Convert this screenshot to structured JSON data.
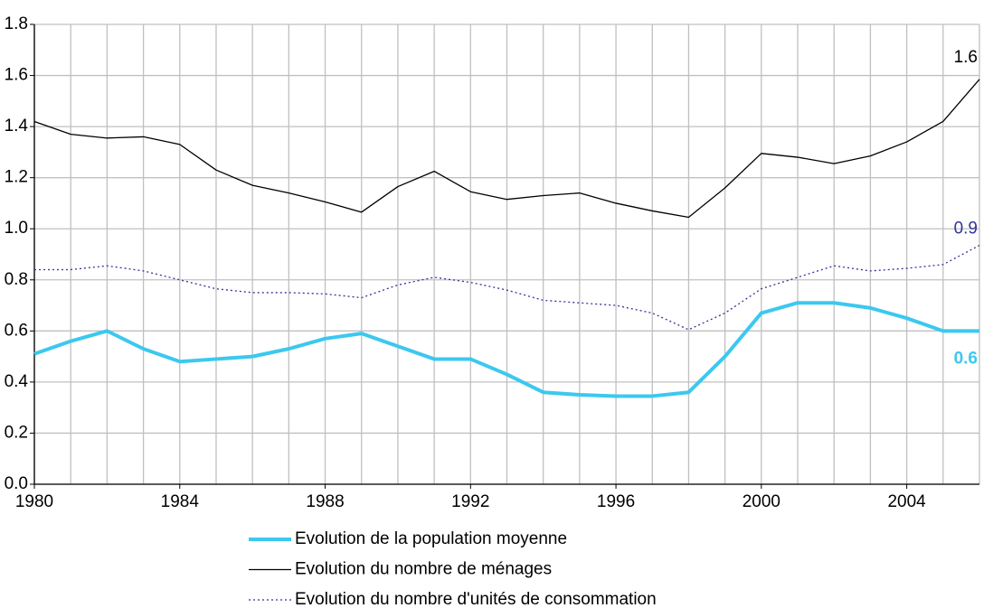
{
  "chart_data": {
    "type": "line",
    "x": [
      1980,
      1981,
      1982,
      1983,
      1984,
      1985,
      1986,
      1987,
      1988,
      1989,
      1990,
      1991,
      1992,
      1993,
      1994,
      1995,
      1996,
      1997,
      1998,
      1999,
      2000,
      2001,
      2002,
      2003,
      2004,
      2005,
      2006
    ],
    "series": [
      {
        "name": "Evolution de la population moyenne",
        "color": "#3cc8ef",
        "width": 4,
        "dash": "solid",
        "values": [
          0.51,
          0.56,
          0.6,
          0.53,
          0.48,
          0.49,
          0.5,
          0.53,
          0.57,
          0.59,
          0.54,
          0.49,
          0.49,
          0.43,
          0.36,
          0.35,
          0.345,
          0.345,
          0.36,
          0.5,
          0.67,
          0.71,
          0.71,
          0.69,
          0.65,
          0.6,
          0.6
        ],
        "value_labels": [
          null,
          null,
          null,
          null,
          null,
          null,
          null,
          null,
          null,
          null,
          null,
          null,
          null,
          null,
          null,
          null,
          null,
          null,
          null,
          null,
          null,
          null,
          null,
          null,
          null,
          null,
          "0.6"
        ]
      },
      {
        "name": "Evolution du nombre de ménages",
        "color": "#000000",
        "width": 1.3,
        "dash": "solid",
        "values": [
          1.42,
          1.37,
          1.355,
          1.36,
          1.33,
          1.23,
          1.17,
          1.14,
          1.105,
          1.065,
          1.165,
          1.225,
          1.145,
          1.115,
          1.13,
          1.14,
          1.1,
          1.07,
          1.045,
          1.16,
          1.295,
          1.28,
          1.255,
          1.285,
          1.34,
          1.42,
          1.585
        ],
        "value_labels": [
          null,
          null,
          null,
          null,
          null,
          null,
          null,
          null,
          null,
          null,
          null,
          null,
          null,
          null,
          null,
          null,
          null,
          null,
          null,
          null,
          null,
          null,
          null,
          null,
          null,
          null,
          "1.6"
        ]
      },
      {
        "name": "Evolution du nombre d'unités de consommation",
        "color": "#333399",
        "width": 1.3,
        "dash": "dotted",
        "values": [
          0.84,
          0.84,
          0.855,
          0.835,
          0.8,
          0.765,
          0.75,
          0.75,
          0.745,
          0.73,
          0.78,
          0.81,
          0.79,
          0.76,
          0.72,
          0.71,
          0.7,
          0.67,
          0.605,
          0.67,
          0.765,
          0.81,
          0.855,
          0.835,
          0.845,
          0.86,
          0.935
        ],
        "value_labels": [
          null,
          null,
          null,
          null,
          null,
          null,
          null,
          null,
          null,
          null,
          null,
          null,
          null,
          null,
          null,
          null,
          null,
          null,
          null,
          null,
          null,
          null,
          null,
          null,
          null,
          null,
          "0.9"
        ]
      }
    ],
    "xlim": [
      1980,
      2006
    ],
    "xticks": [
      1980,
      1984,
      1988,
      1992,
      1996,
      2000,
      2004
    ],
    "xgrid": [
      1980,
      1981,
      1982,
      1983,
      1984,
      1985,
      1986,
      1987,
      1988,
      1989,
      1990,
      1991,
      1992,
      1993,
      1994,
      1995,
      1996,
      1997,
      1998,
      1999,
      2000,
      2001,
      2002,
      2003,
      2004,
      2005,
      2006
    ],
    "ylim": [
      0,
      1.8
    ],
    "yticks": [
      {
        "value": 0,
        "label": "0.0"
      },
      {
        "value": 0.2,
        "label": "0.2"
      },
      {
        "value": 0.4,
        "label": "0.4"
      },
      {
        "value": 0.6,
        "label": "0.6"
      },
      {
        "value": 0.8,
        "label": "0.8"
      },
      {
        "value": 1,
        "label": "1.0"
      },
      {
        "value": 1.2,
        "label": "1.2"
      },
      {
        "value": 1.4,
        "label": "1.4"
      },
      {
        "value": 1.6,
        "label": "1.6"
      },
      {
        "value": 1.8,
        "label": "1.8"
      }
    ],
    "grid": true,
    "legend": "bottom"
  }
}
